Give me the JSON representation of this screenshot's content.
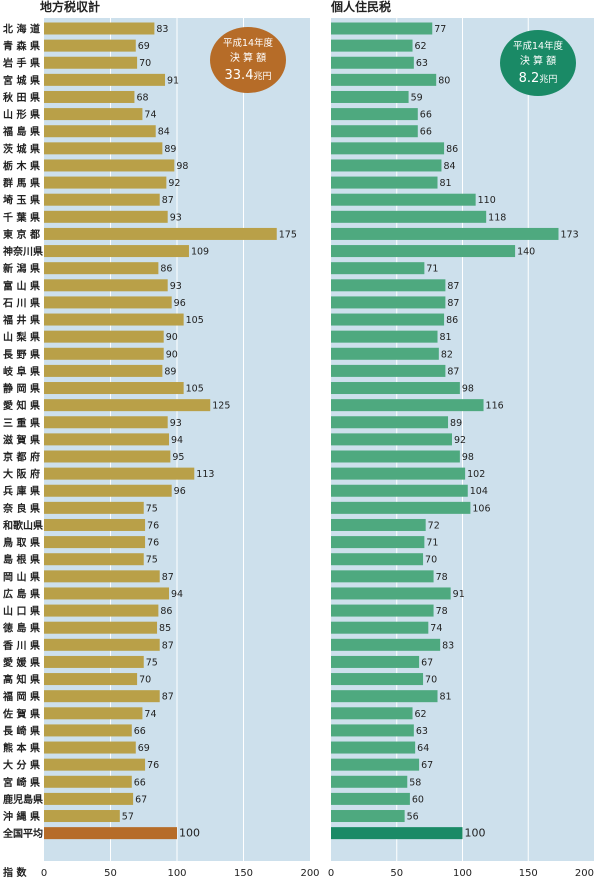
{
  "chart_data": [
    {
      "type": "bar",
      "orientation": "horizontal",
      "title": "地方税収計",
      "categories": [
        "北 海 道",
        "青 森 県",
        "岩 手 県",
        "宮 城 県",
        "秋 田 県",
        "山 形 県",
        "福 島 県",
        "茨 城 県",
        "栃 木 県",
        "群 馬 県",
        "埼 玉 県",
        "千 葉 県",
        "東 京 都",
        "神奈川県",
        "新 潟 県",
        "富 山 県",
        "石 川 県",
        "福 井 県",
        "山 梨 県",
        "長 野 県",
        "岐 阜 県",
        "静 岡 県",
        "愛 知 県",
        "三 重 県",
        "滋 賀 県",
        "京 都 府",
        "大 阪 府",
        "兵 庫 県",
        "奈 良 県",
        "和歌山県",
        "鳥 取 県",
        "島 根 県",
        "岡 山 県",
        "広 島 県",
        "山 口 県",
        "徳 島 県",
        "香 川 県",
        "愛 媛 県",
        "高 知 県",
        "福 岡 県",
        "佐 賀 県",
        "長 崎 県",
        "熊 本 県",
        "大 分 県",
        "宮 崎 県",
        "鹿児島県",
        "沖 縄 県",
        "全国平均"
      ],
      "values": [
        83,
        69,
        70,
        91,
        68,
        74,
        84,
        89,
        98,
        92,
        87,
        93,
        175,
        109,
        86,
        93,
        96,
        105,
        90,
        90,
        89,
        105,
        125,
        93,
        94,
        95,
        113,
        96,
        75,
        76,
        76,
        75,
        87,
        94,
        86,
        85,
        87,
        75,
        70,
        87,
        74,
        66,
        69,
        76,
        66,
        67,
        57,
        100
      ],
      "value_labels": [
        "83",
        "69",
        "70",
        "91",
        "68",
        "74",
        "84",
        "89",
        "98",
        "92",
        "87",
        "93",
        "175",
        "109",
        "86",
        "93",
        "96",
        "105",
        "90",
        "90",
        "89",
        "105",
        "125",
        "93",
        "94",
        "95",
        "113",
        "96",
        "75",
        "76",
        "76",
        "75",
        "87",
        "94",
        "86",
        "85",
        "87",
        "75",
        "70",
        "87",
        "74",
        "66",
        "69",
        "76",
        "66",
        "67",
        "57",
        "100"
      ],
      "xlim": [
        0,
        200
      ],
      "xticks": [
        "0",
        "50",
        "100",
        "150",
        "200"
      ],
      "xlabel": "指 数",
      "colors": {
        "bar": "#b9a048",
        "average_bar": "#b66c28",
        "plot_bg": "#cde0ec",
        "grid": "#ffffff",
        "badge": "#b66c28"
      },
      "badge": {
        "line1": "平成14年度",
        "line2": "決 算 額",
        "amount": "33.4",
        "unit": "兆円"
      }
    },
    {
      "type": "bar",
      "orientation": "horizontal",
      "title": "個人住民税",
      "values": [
        77,
        62,
        63,
        80,
        59,
        66,
        66,
        86,
        84,
        81,
        110,
        118,
        173,
        140,
        71,
        87,
        87,
        86,
        81,
        82,
        87,
        98,
        116,
        89,
        92,
        98,
        102,
        104,
        106,
        72,
        71,
        70,
        78,
        91,
        78,
        74,
        83,
        67,
        70,
        81,
        62,
        63,
        64,
        67,
        58,
        60,
        56,
        100
      ],
      "value_labels": [
        "77",
        "62",
        "63",
        "80",
        "59",
        "66",
        "66",
        "86",
        "84",
        "81",
        "110",
        "118",
        "173",
        "140",
        "71",
        "87",
        "87",
        "86",
        "81",
        "82",
        "87",
        "98",
        "116",
        "89",
        "92",
        "98",
        "102",
        "104",
        "106",
        "72",
        "71",
        "70",
        "78",
        "91",
        "78",
        "74",
        "83",
        "67",
        "70",
        "81",
        "62",
        "63",
        "64",
        "67",
        "58",
        "60",
        "56",
        "100"
      ],
      "xlim": [
        0,
        200
      ],
      "xticks": [
        "0",
        "50",
        "100",
        "150",
        "200"
      ],
      "colors": {
        "bar": "#4ea97f",
        "average_bar": "#1a8a66",
        "plot_bg": "#cde0ec",
        "grid": "#ffffff",
        "badge": "#1a8a66"
      },
      "badge": {
        "line1": "平成14年度",
        "line2": "決 算 額",
        "amount": "8.2",
        "unit": "兆円"
      }
    }
  ]
}
